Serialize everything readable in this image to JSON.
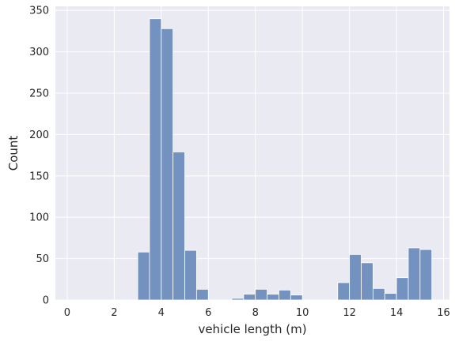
{
  "chart_data": {
    "type": "bar",
    "subtype": "histogram",
    "title": "",
    "xlabel": "vehicle length (m)",
    "ylabel": "Count",
    "xlim": [
      -0.5,
      16.25
    ],
    "ylim": [
      0,
      355
    ],
    "xticks": [
      0,
      2,
      4,
      6,
      8,
      10,
      12,
      14,
      16
    ],
    "yticks": [
      0,
      50,
      100,
      150,
      200,
      250,
      300,
      350
    ],
    "bin_width": 0.5,
    "bin_start": 0.0,
    "values": [
      0,
      0,
      0,
      0,
      0,
      0,
      58,
      340,
      328,
      179,
      60,
      13,
      0,
      0,
      2,
      7,
      13,
      7,
      12,
      6,
      0,
      0,
      0,
      21,
      55,
      45,
      14,
      8,
      27,
      63,
      61
    ],
    "grid": true,
    "bar_color": "#6d8dbd",
    "background_color": "#eaeaf2",
    "grid_color": "#ffffff"
  }
}
